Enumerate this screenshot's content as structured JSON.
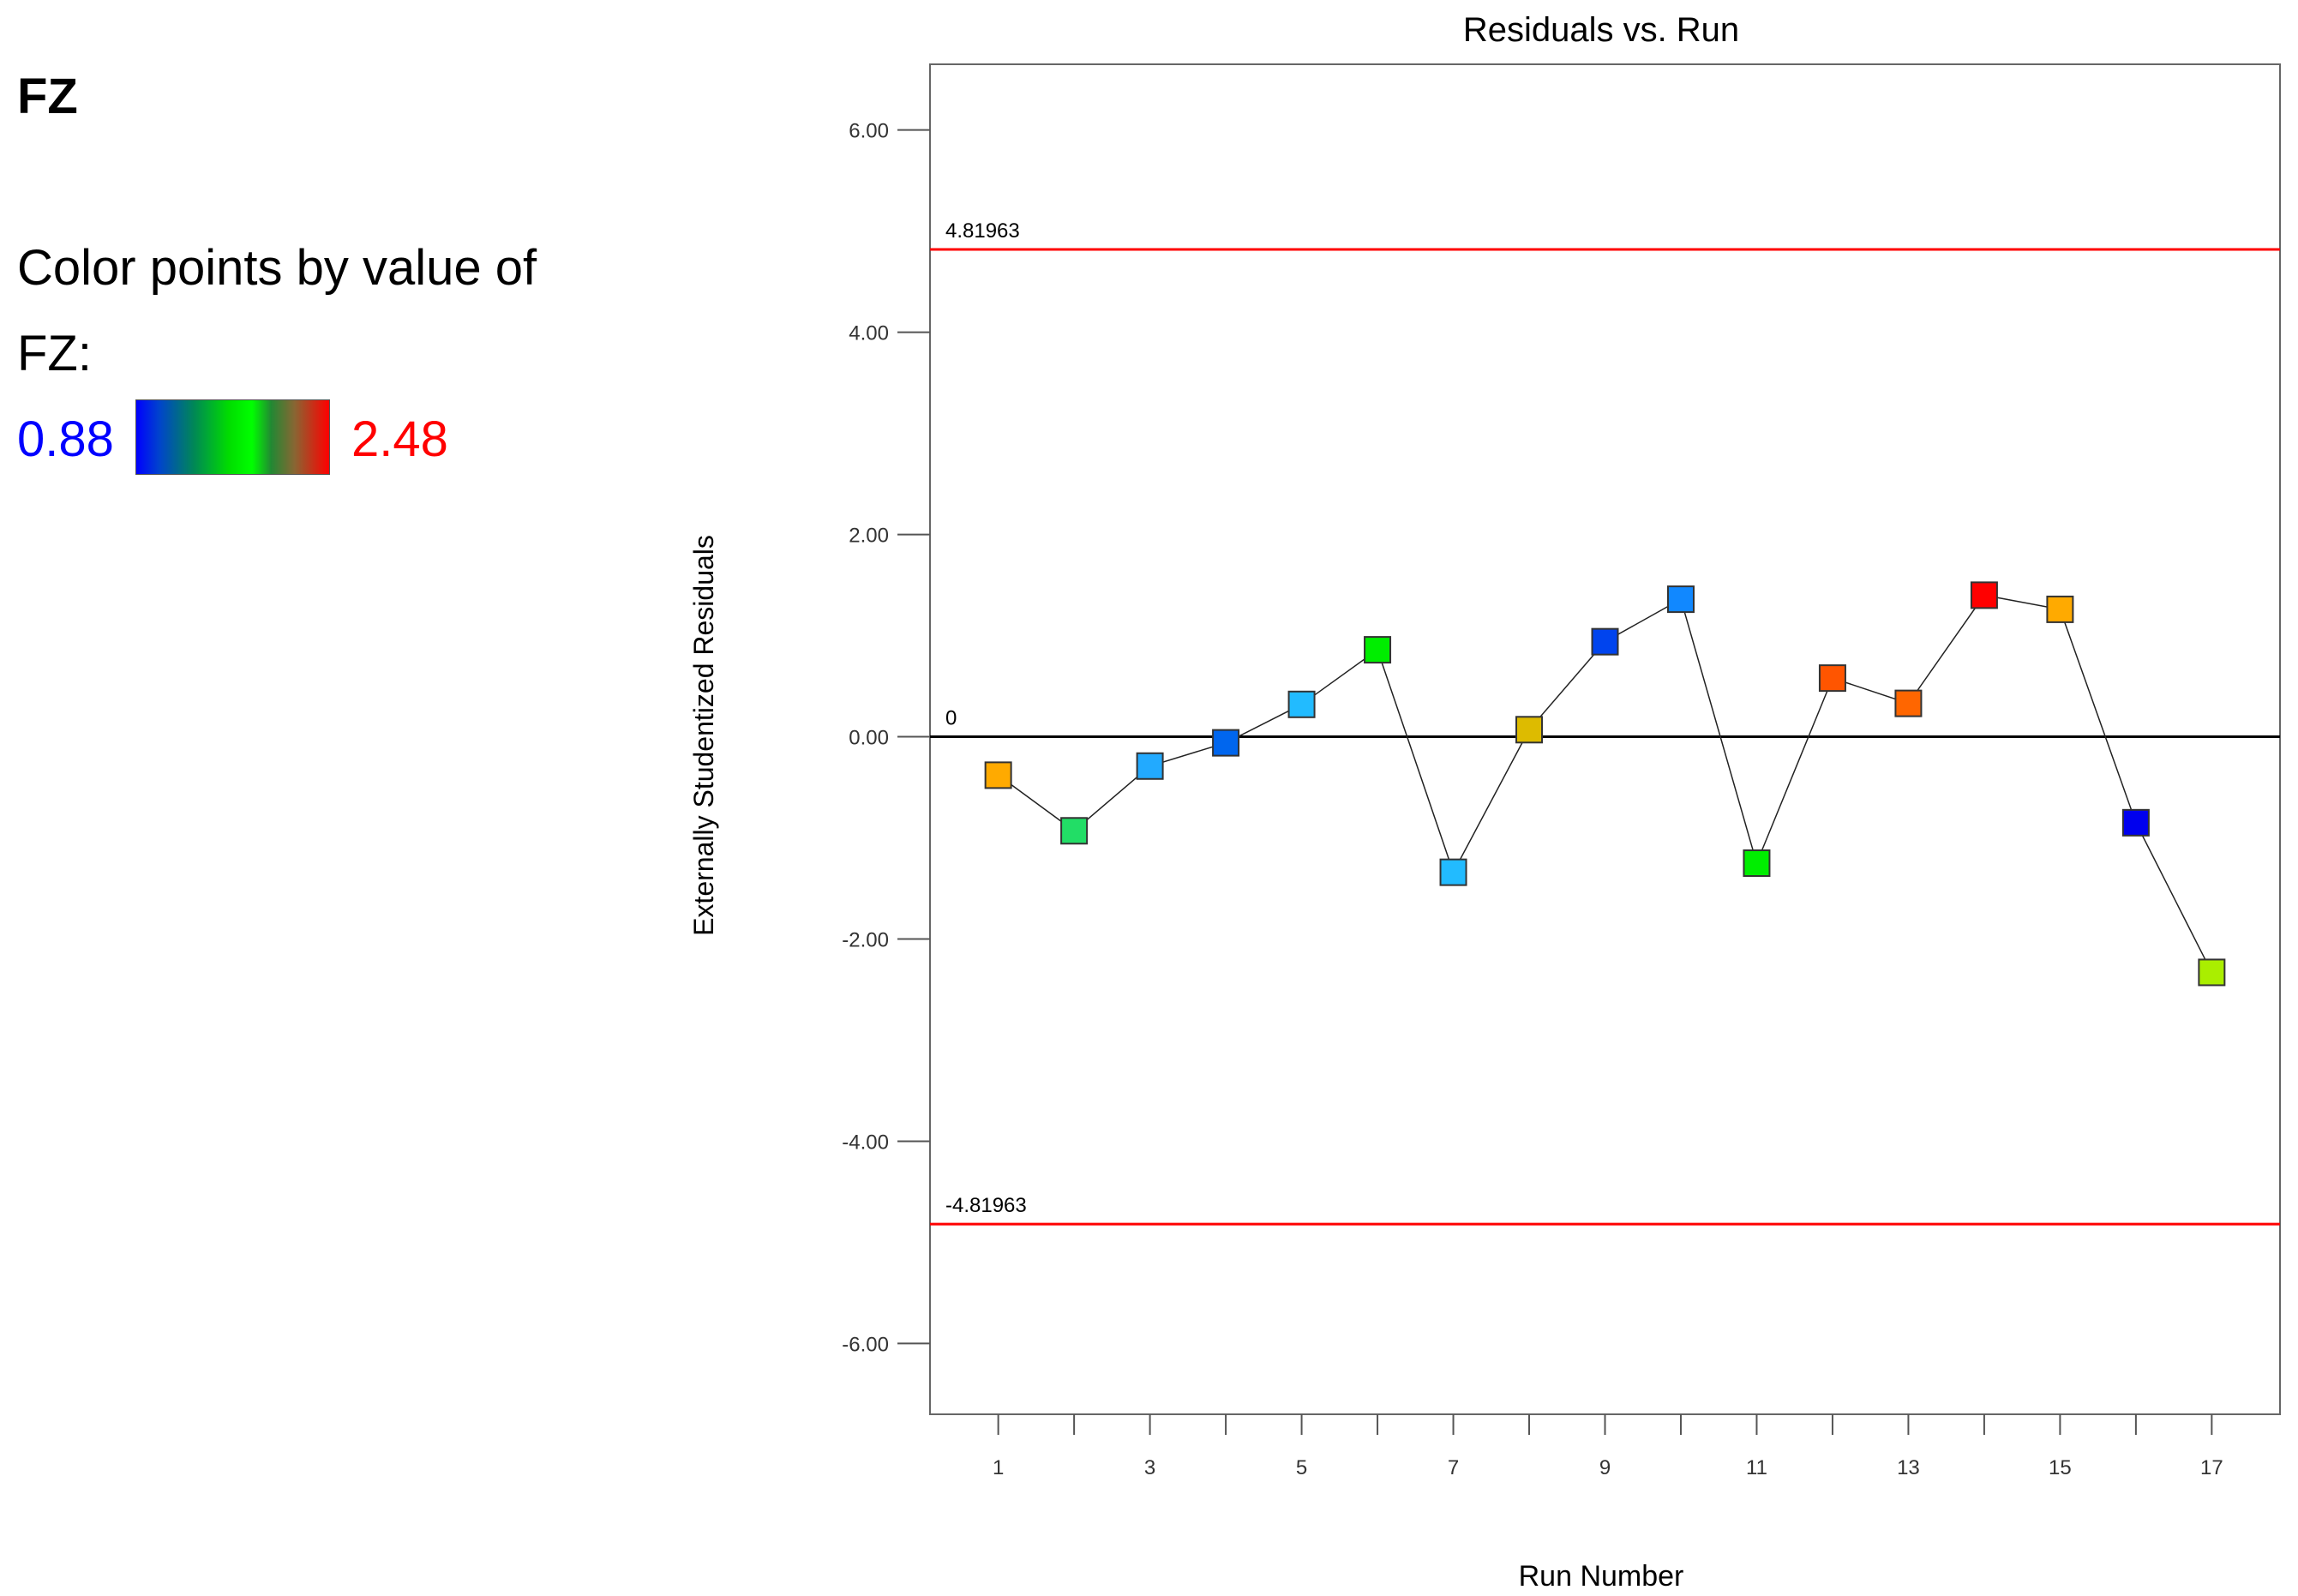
{
  "legend": {
    "response": "FZ",
    "caption_line1": "Color points by value of",
    "caption_line2": "FZ:",
    "min_label": "0.88",
    "max_label": "2.48",
    "min_color": "#0000ff",
    "max_color": "#ff0000"
  },
  "chart_data": {
    "type": "line",
    "title": "Residuals vs. Run",
    "xlabel": "Run Number",
    "ylabel": "Externally Studentized Residuals",
    "xlim": [
      0.1,
      17.9
    ],
    "ylim": [
      -6.7,
      6.65
    ],
    "x_ticks": [
      1,
      2,
      3,
      4,
      5,
      6,
      7,
      8,
      9,
      10,
      11,
      12,
      13,
      14,
      15,
      16,
      17
    ],
    "x_tick_labels": [
      "1",
      "",
      "3",
      "",
      "5",
      "",
      "7",
      "",
      "9",
      "",
      "11",
      "",
      "13",
      "",
      "15",
      "",
      "17"
    ],
    "y_ticks": [
      -6,
      -4,
      -2,
      0,
      2,
      4,
      6
    ],
    "y_tick_labels": [
      "-6.00",
      "-4.00",
      "-2.00",
      "0.00",
      "2.00",
      "4.00",
      "6.00"
    ],
    "reference_lines": [
      {
        "value": 4.81963,
        "label": "4.81963",
        "color": "#ff0000"
      },
      {
        "value": 0,
        "label": "0",
        "color": "#000000"
      },
      {
        "value": -4.81963,
        "label": "-4.81963",
        "color": "#ff0000"
      }
    ],
    "x": [
      1,
      2,
      3,
      4,
      5,
      6,
      7,
      8,
      9,
      10,
      11,
      12,
      13,
      14,
      15,
      16,
      17
    ],
    "y": [
      -0.38,
      -0.93,
      -0.29,
      -0.06,
      0.32,
      0.86,
      -1.34,
      0.07,
      0.94,
      1.36,
      -1.25,
      0.58,
      0.33,
      1.4,
      1.26,
      -0.85,
      -2.33
    ],
    "point_colors": [
      "#ffaa00",
      "#22dd66",
      "#22aaff",
      "#0066ee",
      "#22bbff",
      "#00ee00",
      "#22bbff",
      "#ddbb00",
      "#0044ee",
      "#1188ff",
      "#00ee00",
      "#ff5500",
      "#ff6600",
      "#ff0000",
      "#ffaa00",
      "#0000ee",
      "#aaee00"
    ]
  }
}
